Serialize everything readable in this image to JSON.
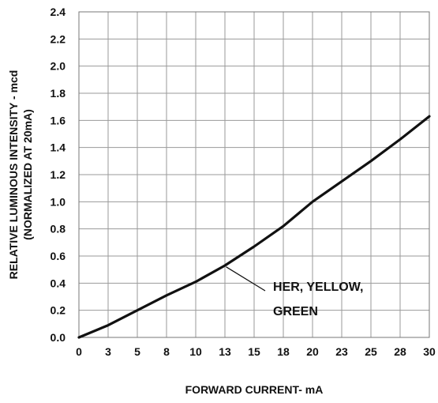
{
  "chart_data": {
    "type": "line",
    "xlabel": "FORWARD CURRENT- mA",
    "ylabel_line1": "RELATIVE LUMINOUS INTENSITY - mcd",
    "ylabel_line2": "(NORMALIZED AT 20mA)",
    "xlim": [
      0,
      30
    ],
    "ylim": [
      0,
      2.4
    ],
    "x_ticks": [
      {
        "value": 0,
        "label": "0"
      },
      {
        "value": 2.5,
        "label": "3"
      },
      {
        "value": 5,
        "label": "5"
      },
      {
        "value": 7.5,
        "label": "8"
      },
      {
        "value": 10,
        "label": "10"
      },
      {
        "value": 12.5,
        "label": "13"
      },
      {
        "value": 15,
        "label": "15"
      },
      {
        "value": 17.5,
        "label": "18"
      },
      {
        "value": 20,
        "label": "20"
      },
      {
        "value": 22.5,
        "label": "23"
      },
      {
        "value": 25,
        "label": "25"
      },
      {
        "value": 27.5,
        "label": "28"
      },
      {
        "value": 30,
        "label": "30"
      }
    ],
    "y_ticks": [
      {
        "value": 0.0,
        "label": "0.0"
      },
      {
        "value": 0.2,
        "label": "0.2"
      },
      {
        "value": 0.4,
        "label": "0.4"
      },
      {
        "value": 0.6,
        "label": "0.6"
      },
      {
        "value": 0.8,
        "label": "0.8"
      },
      {
        "value": 1.0,
        "label": "1.0"
      },
      {
        "value": 1.2,
        "label": "1.2"
      },
      {
        "value": 1.4,
        "label": "1.4"
      },
      {
        "value": 1.6,
        "label": "1.6"
      },
      {
        "value": 1.8,
        "label": "1.8"
      },
      {
        "value": 2.0,
        "label": "2.0"
      },
      {
        "value": 2.2,
        "label": "2.2"
      },
      {
        "value": 2.4,
        "label": "2.4"
      }
    ],
    "grid": true,
    "series": [
      {
        "name": "HER, YELLOW, GREEN",
        "color": "#111111",
        "x": [
          0,
          2.5,
          5,
          7.5,
          10,
          12.5,
          15,
          17.5,
          20,
          22.5,
          25,
          27.5,
          30
        ],
        "y": [
          0.0,
          0.09,
          0.2,
          0.31,
          0.41,
          0.53,
          0.67,
          0.82,
          1.0,
          1.15,
          1.3,
          1.46,
          1.63
        ]
      }
    ],
    "annotation": {
      "line1": "HER, YELLOW,",
      "line2": "GREEN",
      "points_to": {
        "x": 12.6,
        "y": 0.52
      }
    }
  }
}
